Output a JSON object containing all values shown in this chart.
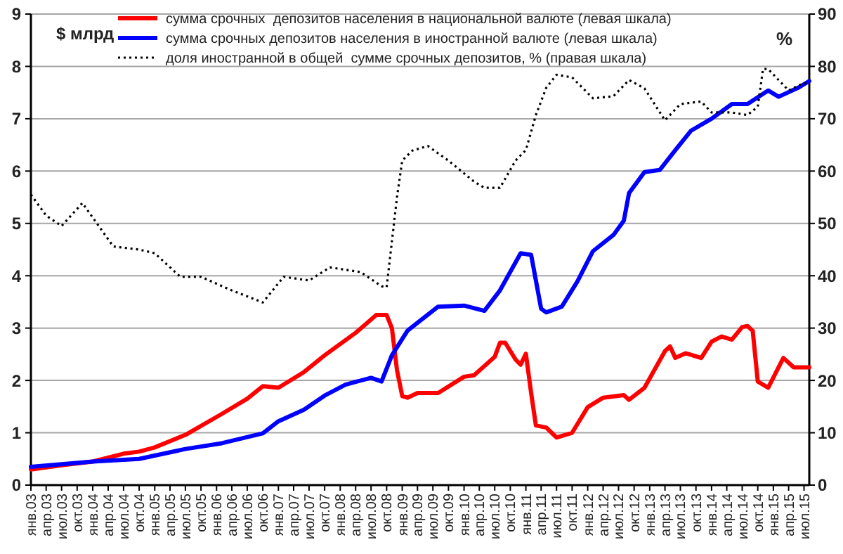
{
  "chart_data": {
    "type": "line",
    "ylabel": "$ млрд",
    "y2label": "%",
    "xlim": [
      "2003-01",
      "2015-08"
    ],
    "xticks": [
      {
        "value": "2003-01",
        "label": "янв.03"
      },
      {
        "value": "2003-04",
        "label": "апр.03"
      },
      {
        "value": "2003-07",
        "label": "июл.03"
      },
      {
        "value": "2003-10",
        "label": "окт.03"
      },
      {
        "value": "2004-01",
        "label": "янв.04"
      },
      {
        "value": "2004-04",
        "label": "апр.04"
      },
      {
        "value": "2004-07",
        "label": "июл.04"
      },
      {
        "value": "2004-10",
        "label": "окт.04"
      },
      {
        "value": "2005-01",
        "label": "янв.05"
      },
      {
        "value": "2005-04",
        "label": "апр.05"
      },
      {
        "value": "2005-07",
        "label": "июл.05"
      },
      {
        "value": "2005-10",
        "label": "окт.05"
      },
      {
        "value": "2006-01",
        "label": "янв.06"
      },
      {
        "value": "2006-04",
        "label": "апр.06"
      },
      {
        "value": "2006-07",
        "label": "июл.06"
      },
      {
        "value": "2006-10",
        "label": "окт.06"
      },
      {
        "value": "2007-01",
        "label": "янв.07"
      },
      {
        "value": "2007-04",
        "label": "апр.07"
      },
      {
        "value": "2007-07",
        "label": "июл.07"
      },
      {
        "value": "2007-10",
        "label": "окт.07"
      },
      {
        "value": "2008-01",
        "label": "янв.08"
      },
      {
        "value": "2008-04",
        "label": "апр.08"
      },
      {
        "value": "2008-07",
        "label": "июл.08"
      },
      {
        "value": "2008-10",
        "label": "окт.08"
      },
      {
        "value": "2009-01",
        "label": "янв.09"
      },
      {
        "value": "2009-04",
        "label": "апр.09"
      },
      {
        "value": "2009-07",
        "label": "июл.09"
      },
      {
        "value": "2009-10",
        "label": "окт.09"
      },
      {
        "value": "2010-01",
        "label": "янв.10"
      },
      {
        "value": "2010-04",
        "label": "апр.10"
      },
      {
        "value": "2010-07",
        "label": "июл.10"
      },
      {
        "value": "2010-10",
        "label": "окт.10"
      },
      {
        "value": "2011-01",
        "label": "янв.11"
      },
      {
        "value": "2011-04",
        "label": "апр.11"
      },
      {
        "value": "2011-07",
        "label": "июл.11"
      },
      {
        "value": "2011-10",
        "label": "окт.11"
      },
      {
        "value": "2012-01",
        "label": "янв.12"
      },
      {
        "value": "2012-04",
        "label": "апр.12"
      },
      {
        "value": "2012-07",
        "label": "июл.12"
      },
      {
        "value": "2012-10",
        "label": "окт.12"
      },
      {
        "value": "2013-01",
        "label": "янв.13"
      },
      {
        "value": "2013-04",
        "label": "апр.13"
      },
      {
        "value": "2013-07",
        "label": "июл.13"
      },
      {
        "value": "2013-10",
        "label": "окт.13"
      },
      {
        "value": "2014-01",
        "label": "янв.14"
      },
      {
        "value": "2014-04",
        "label": "апр.14"
      },
      {
        "value": "2014-07",
        "label": "июл.14"
      },
      {
        "value": "2014-10",
        "label": "окт.14"
      },
      {
        "value": "2015-01",
        "label": "янв.15"
      },
      {
        "value": "2015-04",
        "label": "апр.15"
      },
      {
        "value": "2015-07",
        "label": "июл.15"
      }
    ],
    "ylim": [
      0,
      9
    ],
    "yticks": [
      0,
      1,
      2,
      3,
      4,
      5,
      6,
      7,
      8,
      9
    ],
    "y2lim": [
      0,
      90
    ],
    "y2ticks": [
      0,
      10,
      20,
      30,
      40,
      50,
      60,
      70,
      80,
      90
    ],
    "grid": "y",
    "legend": "top",
    "marker": "none",
    "series": [
      {
        "name": "сумма срочных  депозитов населения в национальной валюте (левая шкала)",
        "color": "#ff0000",
        "line_style": "solid",
        "x": [
          "2003-01",
          "2003-07",
          "2004-01",
          "2004-07",
          "2004-10",
          "2005-01",
          "2005-07",
          "2006-02",
          "2006-07",
          "2006-10",
          "2007-01",
          "2007-06",
          "2007-10",
          "2008-04",
          "2008-08",
          "2008-10",
          "2008-11",
          "2008-12",
          "2009-01",
          "2009-02",
          "2009-04",
          "2009-08",
          "2010-01",
          "2010-03",
          "2010-07",
          "2010-08",
          "2010-09",
          "2010-11",
          "2010-12",
          "2011-01",
          "2011-02",
          "2011-03",
          "2011-05",
          "2011-07",
          "2011-10",
          "2012-01",
          "2012-04",
          "2012-08",
          "2012-09",
          "2012-12",
          "2013-04",
          "2013-05",
          "2013-06",
          "2013-08",
          "2013-11",
          "2014-01",
          "2014-03",
          "2014-05",
          "2014-07",
          "2014-08",
          "2014-09",
          "2014-10",
          "2014-12",
          "2015-03",
          "2015-05",
          "2015-08"
        ],
        "values": [
          0.3,
          0.38,
          0.45,
          0.6,
          0.64,
          0.72,
          0.96,
          1.36,
          1.65,
          1.89,
          1.86,
          2.16,
          2.48,
          2.91,
          3.25,
          3.25,
          3.0,
          2.2,
          1.7,
          1.67,
          1.76,
          1.76,
          2.07,
          2.1,
          2.45,
          2.72,
          2.72,
          2.4,
          2.3,
          2.51,
          1.76,
          1.14,
          1.1,
          0.91,
          1.0,
          1.49,
          1.67,
          1.72,
          1.63,
          1.86,
          2.56,
          2.65,
          2.43,
          2.52,
          2.43,
          2.74,
          2.84,
          2.78,
          3.02,
          3.04,
          2.95,
          1.98,
          1.86,
          2.43,
          2.25,
          2.25
        ]
      },
      {
        "name": "сумма срочных депозитов населения в иностранной валюте (левая шкала)",
        "color": "#0000ff",
        "line_style": "solid",
        "x": [
          "2003-01",
          "2004-01",
          "2004-10",
          "2005-07",
          "2006-02",
          "2006-10",
          "2007-01",
          "2007-06",
          "2007-10",
          "2008-02",
          "2008-07",
          "2008-09",
          "2008-11",
          "2009-02",
          "2009-04",
          "2009-08",
          "2010-01",
          "2010-05",
          "2010-08",
          "2010-12",
          "2011-02",
          "2011-04",
          "2011-05",
          "2011-08",
          "2011-11",
          "2012-02",
          "2012-06",
          "2012-08",
          "2012-09",
          "2012-12",
          "2013-03",
          "2013-06",
          "2013-09",
          "2014-01",
          "2014-05",
          "2014-08",
          "2014-12",
          "2015-02",
          "2015-06",
          "2015-08"
        ],
        "values": [
          0.35,
          0.45,
          0.5,
          0.69,
          0.8,
          0.99,
          1.22,
          1.44,
          1.71,
          1.92,
          2.05,
          1.98,
          2.48,
          2.95,
          3.1,
          3.41,
          3.43,
          3.33,
          3.72,
          4.43,
          4.4,
          3.37,
          3.3,
          3.41,
          3.89,
          4.47,
          4.78,
          5.05,
          5.58,
          5.98,
          6.02,
          6.4,
          6.77,
          7.0,
          7.28,
          7.28,
          7.54,
          7.42,
          7.6,
          7.72
        ]
      },
      {
        "name": "доля иностранной в общей  сумме срочных депозитов, % (правая шкала)",
        "color": "#000000",
        "line_style": "dotted",
        "axis": "y2",
        "x": [
          "2003-01",
          "2003-04",
          "2003-07",
          "2003-11",
          "2004-05",
          "2004-10",
          "2005-01",
          "2005-06",
          "2005-10",
          "2006-04",
          "2006-10",
          "2007-02",
          "2007-07",
          "2007-11",
          "2008-05",
          "2008-09",
          "2008-10",
          "2008-12",
          "2009-01",
          "2009-03",
          "2009-06",
          "2009-10",
          "2010-03",
          "2010-05",
          "2010-08",
          "2010-11",
          "2010-12",
          "2011-01",
          "2011-03",
          "2011-05",
          "2011-07",
          "2011-10",
          "2012-02",
          "2012-06",
          "2012-09",
          "2012-12",
          "2013-04",
          "2013-07",
          "2013-11",
          "2014-01",
          "2014-05",
          "2014-08",
          "2014-10",
          "2014-11",
          "2014-12",
          "2015-04",
          "2015-06",
          "2015-08"
        ],
        "values": [
          55.5,
          51.5,
          49.5,
          53.9,
          45.6,
          45,
          44.3,
          39.8,
          39.8,
          37.2,
          34.9,
          39.8,
          39.1,
          41.6,
          40.7,
          38,
          37.8,
          55,
          62,
          63.9,
          64.8,
          62,
          58,
          56.8,
          56.8,
          62,
          63,
          64,
          70.7,
          75.9,
          78.4,
          77.9,
          73.9,
          74.3,
          77.4,
          75.8,
          69.7,
          72.8,
          73.3,
          71.2,
          71.2,
          70.7,
          72.3,
          79.5,
          79.5,
          75.4,
          76.4,
          77
        ]
      }
    ]
  }
}
